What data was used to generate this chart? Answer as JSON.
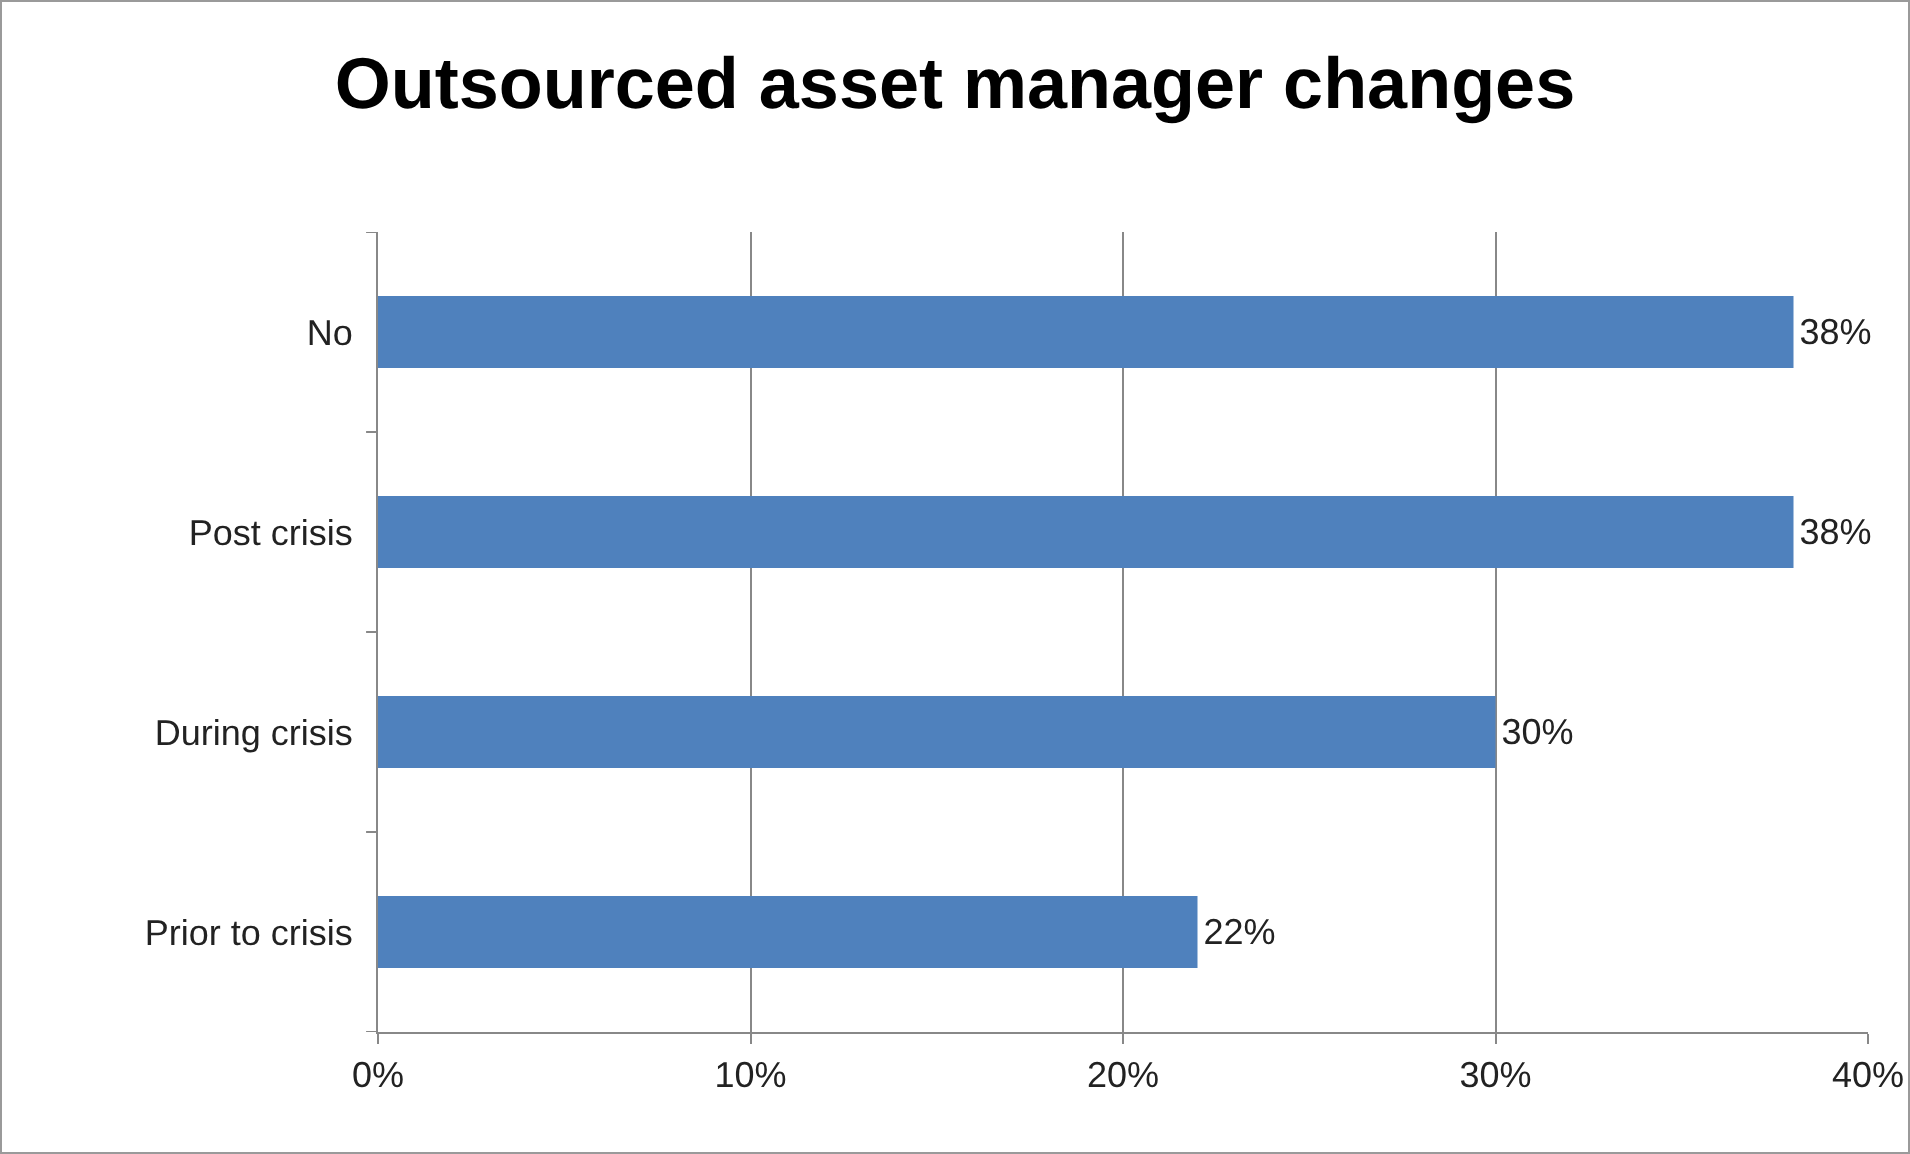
{
  "chart_data": {
    "type": "bar",
    "title": "Outsourced asset manager changes",
    "orientation": "horizontal",
    "categories": [
      "No",
      "Post crisis",
      "During crisis",
      "Prior to crisis"
    ],
    "values": [
      38,
      38,
      30,
      22
    ],
    "value_labels": [
      "38%",
      "38%",
      "30%",
      "22%"
    ],
    "color": "#4f81bd",
    "xlim": [
      0,
      40
    ],
    "xticks": [
      {
        "value": 0,
        "label": "0%"
      },
      {
        "value": 10,
        "label": "10%"
      },
      {
        "value": 20,
        "label": "20%"
      },
      {
        "value": 30,
        "label": "30%"
      },
      {
        "value": 40,
        "label": "40%"
      }
    ],
    "grid": "x",
    "legend": false
  }
}
